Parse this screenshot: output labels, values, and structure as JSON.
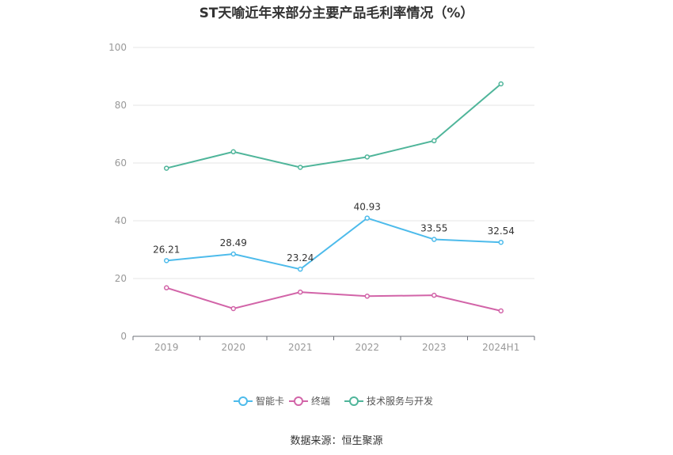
{
  "title": "ST天喻近年来部分主要产品毛利率情况（%）",
  "source": "数据来源：恒生聚源",
  "chart_data": {
    "type": "line",
    "title": "ST天喻近年来部分主要产品毛利率情况（%）",
    "xlabel": "",
    "ylabel": "",
    "categories": [
      "2019",
      "2020",
      "2021",
      "2022",
      "2023",
      "2024H1"
    ],
    "ylim": [
      0,
      100
    ],
    "yticks": [
      0,
      20,
      40,
      60,
      80,
      100
    ],
    "grid": true,
    "legend_position": "bottom",
    "series": [
      {
        "name": "智能卡",
        "color": "#4dbbeb",
        "values": [
          26.21,
          28.49,
          23.24,
          40.93,
          33.55,
          32.54
        ],
        "labels": [
          "26.21",
          "28.49",
          "23.24",
          "40.93",
          "33.55",
          "32.54"
        ]
      },
      {
        "name": "终端",
        "color": "#d264a8",
        "values": [
          16.8,
          9.6,
          15.3,
          13.9,
          14.2,
          8.8
        ],
        "labels": null
      },
      {
        "name": "技术服务与开发",
        "color": "#4fb59a",
        "values": [
          58.2,
          63.9,
          58.5,
          62.1,
          67.7,
          87.4
        ],
        "labels": null
      }
    ]
  }
}
